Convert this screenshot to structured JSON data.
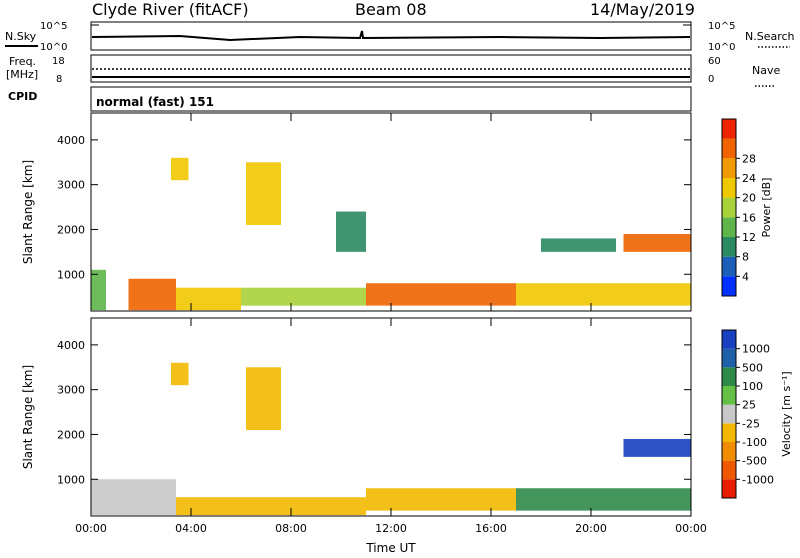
{
  "header": {
    "station": "Clyde River (fitACF)",
    "beam": "Beam 08",
    "date": "14/May/2019"
  },
  "strips": {
    "nsky": {
      "label": "N.Sky",
      "ticks": [
        "10^5",
        "10^0"
      ]
    },
    "nsearch": {
      "label": "N.Search",
      "ticks": [
        "10^5",
        "10^0"
      ]
    },
    "freq": {
      "label_line1": "Freq.",
      "label_line2": "[MHz]",
      "ticks": [
        "18",
        "8"
      ]
    },
    "nave": {
      "label": "Nave",
      "ticks": [
        "60",
        "0"
      ]
    },
    "cpid": {
      "label": "CPID",
      "value": "normal (fast) 151"
    }
  },
  "chart_data": [
    {
      "type": "heatmap",
      "name": "power",
      "ylabel": "Slant Range [km]",
      "xlabel": "Time UT",
      "x_ticks": [
        "00:00",
        "04:00",
        "08:00",
        "12:00",
        "16:00",
        "20:00",
        "00:00"
      ],
      "xlim_hours": [
        0,
        24
      ],
      "y_ticks": [
        "1000",
        "2000",
        "3000",
        "4000"
      ],
      "ylim_km": [
        180,
        4600
      ],
      "colorbar": {
        "label": "Power [dB]",
        "ticks": [
          "4",
          "8",
          "12",
          "16",
          "20",
          "24",
          "28"
        ],
        "range": [
          0,
          32
        ],
        "colors": [
          "#0030ff",
          "#1b5fb8",
          "#2a8a62",
          "#5fb54a",
          "#a8d23a",
          "#f0c800",
          "#f09a00",
          "#f06400",
          "#ee2400"
        ]
      },
      "echo_regions": [
        {
          "t0": 0.0,
          "t1": 0.6,
          "r0": 200,
          "r1": 1100,
          "level": 12
        },
        {
          "t0": 1.5,
          "t1": 3.4,
          "r0": 200,
          "r1": 900,
          "level": 28
        },
        {
          "t0": 3.4,
          "t1": 6.0,
          "r0": 200,
          "r1": 700,
          "level": 18
        },
        {
          "t0": 6.0,
          "t1": 11.0,
          "r0": 300,
          "r1": 700,
          "level": 16
        },
        {
          "t0": 11.0,
          "t1": 17.0,
          "r0": 300,
          "r1": 800,
          "level": 26
        },
        {
          "t0": 17.0,
          "t1": 24.0,
          "r0": 300,
          "r1": 800,
          "level": 20
        },
        {
          "t0": 21.3,
          "t1": 24.0,
          "r0": 1500,
          "r1": 1900,
          "level": 28
        },
        {
          "t0": 18.0,
          "t1": 21.0,
          "r0": 1500,
          "r1": 1800,
          "level": 10
        },
        {
          "t0": 9.8,
          "t1": 11.0,
          "r0": 1500,
          "r1": 2400,
          "level": 10
        },
        {
          "t0": 3.2,
          "t1": 3.9,
          "r0": 3100,
          "r1": 3600,
          "level": 20
        },
        {
          "t0": 6.2,
          "t1": 7.6,
          "r0": 2100,
          "r1": 3500,
          "level": 18
        }
      ]
    },
    {
      "type": "heatmap",
      "name": "velocity",
      "ylabel": "Slant Range [km]",
      "xlabel": "Time UT",
      "x_ticks": [
        "00:00",
        "04:00",
        "08:00",
        "12:00",
        "16:00",
        "20:00",
        "00:00"
      ],
      "xlim_hours": [
        0,
        24
      ],
      "y_ticks": [
        "1000",
        "2000",
        "3000",
        "4000"
      ],
      "ylim_km": [
        180,
        4600
      ],
      "colorbar": {
        "label": "Velocity [m s⁻¹]",
        "ticks": [
          "1000",
          "500",
          "100",
          "25",
          "-25",
          "-100",
          "-500",
          "-1000"
        ],
        "colors": [
          "#1840c0",
          "#2060a8",
          "#2f8a4a",
          "#64c046",
          "#c8c8c8",
          "#f2b800",
          "#f08c00",
          "#f05800",
          "#e81c00"
        ]
      },
      "echo_regions": [
        {
          "t0": 0.0,
          "t1": 3.4,
          "r0": 200,
          "r1": 1000,
          "level": 0
        },
        {
          "t0": 3.4,
          "t1": 11.0,
          "r0": 200,
          "r1": 600,
          "level": -100
        },
        {
          "t0": 11.0,
          "t1": 17.0,
          "r0": 300,
          "r1": 800,
          "level": -100
        },
        {
          "t0": 17.0,
          "t1": 24.0,
          "r0": 300,
          "r1": 800,
          "level": 100
        },
        {
          "t0": 21.3,
          "t1": 24.0,
          "r0": 1500,
          "r1": 1900,
          "level": 1000
        },
        {
          "t0": 6.2,
          "t1": 7.6,
          "r0": 2100,
          "r1": 3500,
          "level": -100
        },
        {
          "t0": 3.2,
          "t1": 3.9,
          "r0": 3100,
          "r1": 3600,
          "level": -100
        }
      ]
    }
  ],
  "colors": {
    "axis": "#000000",
    "background": "#ffffff"
  }
}
